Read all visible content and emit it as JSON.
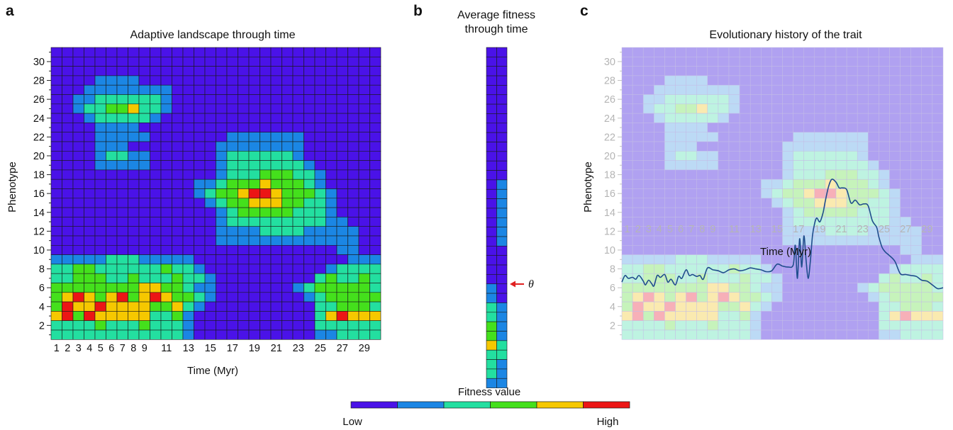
{
  "panels": {
    "a": {
      "label": "a",
      "title": "Adaptive landscape through time",
      "xlabel": "Time (Myr)",
      "ylabel": "Phenotype"
    },
    "b": {
      "label": "b",
      "title_line1": "Average fitness",
      "title_line2": "through time",
      "optimum_symbol": "θ"
    },
    "c": {
      "label": "c",
      "title": "Evolutionary history of the trait",
      "xlabel": "Time (Myr)",
      "ylabel": "Phenotype"
    }
  },
  "legend": {
    "title": "Fitness value",
    "low": "Low",
    "high": "High",
    "colors": [
      "#4a12e8",
      "#1b86e4",
      "#23dfa0",
      "#44e01c",
      "#f6c800",
      "#ec1515"
    ]
  },
  "chart_data": [
    {
      "type": "heatmap",
      "title": "Adaptive landscape through time",
      "xlabel": "Time (Myr)",
      "ylabel": "Phenotype",
      "x_ticks": [
        1,
        2,
        3,
        4,
        5,
        6,
        7,
        8,
        9,
        11,
        13,
        15,
        17,
        19,
        21,
        23,
        25,
        27,
        29
      ],
      "y_ticks": [
        2,
        4,
        6,
        8,
        10,
        12,
        14,
        16,
        18,
        20,
        22,
        24,
        26,
        28,
        30
      ],
      "x_range": [
        1,
        30
      ],
      "y_range": [
        1,
        31
      ],
      "value_scale": "0 = Low ... 5 = High",
      "rows_top_to_bottom": [
        "000000000000000000000000000000",
        "000000000000000000000000000000",
        "000000000000000000000000000000",
        "000011110000000000000000000000",
        "000111111110000000000000000000",
        "001122222210000000000000000000",
        "001223342210000000000000000000",
        "000122222100000000000000000000",
        "000011110000000000000000000000",
        "000011111000000011111110000000",
        "000011100000000111111110000000",
        "000012211000000122222210000000",
        "000011111000000122222221000000",
        "000000000000000122233322100000",
        "000000000000011233343332100000",
        "000000000000012334554333210000",
        "000000000000001233444332210000",
        "000000000000000123333322210000",
        "000000000000000122222222211000",
        "000000000000000111122221111100",
        "000000000000000111111111111100",
        "000000000000000000000000001100",
        "111112221111100000000000000111",
        "223322222232210000000000012222",
        "223332232223221000000000232232",
        "333333334433211000000012333332",
        "345434534543321000000001233333",
        "354454444334210000000000223332",
        "453544444223100000000000245444",
        "222232223222100000000000222222",
        "222222222222100000000000112222"
      ]
    },
    {
      "type": "heatmap",
      "title": "Average fitness through time",
      "columns": 2,
      "rows_top_to_bottom": [
        "00",
        "00",
        "00",
        "00",
        "00",
        "00",
        "00",
        "00",
        "00",
        "00",
        "00",
        "00",
        "00",
        "00",
        "01",
        "01",
        "01",
        "01",
        "01",
        "01",
        "01",
        "00",
        "00",
        "00",
        "00",
        "10",
        "10",
        "21",
        "21",
        "31",
        "31",
        "42",
        "22",
        "21",
        "21",
        "11"
      ]
    },
    {
      "type": "line",
      "title": "Evolutionary history of the trait",
      "xlabel": "Time (Myr)",
      "ylabel": "Phenotype",
      "x_range": [
        1,
        31
      ],
      "y_range": [
        1,
        31
      ],
      "series": [
        {
          "x": [
            1,
            1.3,
            1.6,
            2,
            2.3,
            2.6,
            3,
            3.2,
            3.5,
            3.8,
            4,
            4.3,
            4.6,
            5,
            5.3,
            5.6,
            6,
            6.3,
            6.6,
            7,
            7.3,
            7.6,
            8,
            8.3,
            8.6,
            9,
            9.5,
            10,
            10.5,
            11,
            11.5,
            12,
            12.5,
            13,
            13.5,
            14,
            14.5,
            15,
            15.5,
            16,
            16.5,
            17,
            17.2,
            17.4,
            17.6,
            17.8,
            18,
            18.2,
            18.4,
            18.6,
            18.8,
            19,
            19.2,
            19.5,
            19.8,
            20,
            20.3,
            20.6,
            21,
            21.3,
            21.6,
            22,
            22.4,
            22.8,
            23.2,
            23.6,
            24,
            24.4,
            24.8,
            25,
            25.3,
            25.6,
            26,
            26.5,
            27,
            27.5,
            28,
            28.5,
            29,
            29.5,
            30,
            30.5,
            31
          ],
          "y": [
            6.6,
            7.3,
            7.0,
            7.1,
            6.9,
            7.3,
            6.7,
            6.3,
            6.8,
            6.4,
            6.2,
            7.3,
            7.1,
            7.4,
            6.6,
            6.9,
            6.3,
            7.2,
            7.0,
            7.9,
            7.3,
            7.4,
            7.2,
            7.3,
            6.9,
            8.1,
            7.9,
            7.8,
            7.6,
            7.9,
            8.0,
            7.8,
            7.9,
            8.1,
            8.0,
            7.9,
            7.7,
            7.8,
            8.5,
            8.3,
            8.2,
            8.4,
            10.5,
            7.0,
            11.2,
            8.2,
            11.5,
            9.0,
            7.0,
            8.8,
            11.5,
            12.8,
            13.4,
            13.0,
            14.0,
            15.2,
            16.7,
            17.5,
            17.2,
            16.6,
            16.6,
            16.4,
            15.0,
            15.3,
            14.8,
            14.9,
            14.7,
            13.1,
            12.4,
            11.4,
            10.3,
            9.8,
            9.4,
            8.8,
            7.5,
            7.4,
            7.3,
            7.2,
            6.8,
            6.7,
            6.3,
            5.9,
            6.0
          ]
        }
      ]
    }
  ]
}
